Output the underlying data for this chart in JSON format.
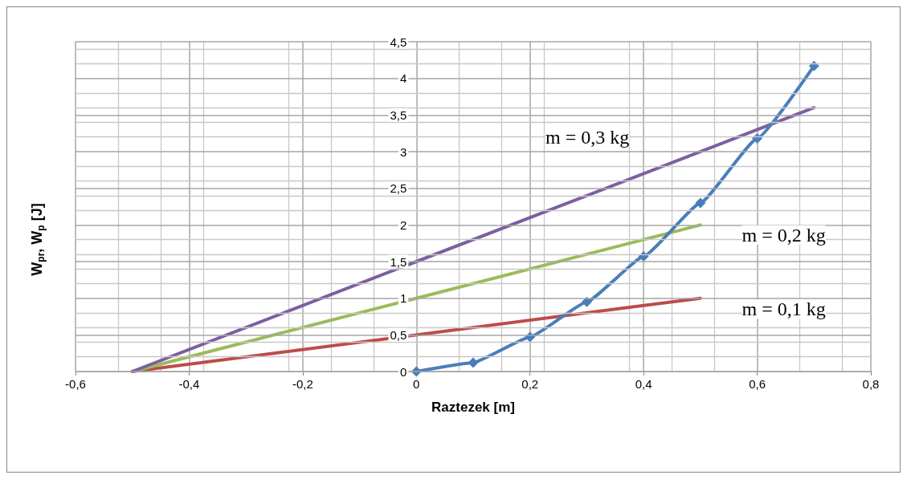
{
  "chart_data": {
    "type": "line",
    "xlabel": "Raztezek [m]",
    "ylabel": "W$_{pr}$, W$_{p}$ [J]",
    "xlim": [
      -0.6,
      0.8
    ],
    "xticks": [
      {
        "value": -0.6,
        "label": "-0,6"
      },
      {
        "value": -0.4,
        "label": "-0,4"
      },
      {
        "value": -0.2,
        "label": "-0,2"
      },
      0,
      {
        "value": 0.2,
        "label": "0,2"
      },
      {
        "value": 0.4,
        "label": "0,4"
      },
      {
        "value": 0.6,
        "label": "0,6"
      },
      {
        "value": 0.8,
        "label": "0,8"
      }
    ],
    "ylim": [
      0,
      4.5
    ],
    "yticks": [
      0,
      {
        "value": 0.5,
        "label": "0,5"
      },
      1,
      {
        "value": 1.5,
        "label": "1,5"
      },
      2,
      {
        "value": 2.5,
        "label": "2,5"
      },
      3,
      {
        "value": 3.5,
        "label": "3,5"
      },
      4,
      {
        "value": 4.5,
        "label": "4,5"
      }
    ],
    "grid": true,
    "series": [
      {
        "color": "#4a7ebb",
        "marker": "diamond",
        "x": [
          0,
          0.1,
          0.2,
          0.3,
          0.4,
          0.5,
          0.6,
          0.7
        ],
        "values": [
          0,
          0.12,
          0.47,
          0.95,
          1.57,
          2.3,
          3.18,
          4.17
        ]
      },
      {
        "color": "#be4b48",
        "marker": "none",
        "x": [
          -0.5,
          0.5
        ],
        "values": [
          0,
          1
        ]
      },
      {
        "color": "#9bbb59",
        "marker": "none",
        "x": [
          -0.5,
          0.5
        ],
        "values": [
          0,
          2
        ]
      },
      {
        "color": "#7d5fa0",
        "marker": "none",
        "x": [
          -0.5,
          0.7
        ],
        "values": [
          0,
          3.6
        ]
      }
    ],
    "annotations": [
      "m = 0,3 kg",
      "m = 0,2 kg",
      "m = 0,1 kg"
    ]
  }
}
